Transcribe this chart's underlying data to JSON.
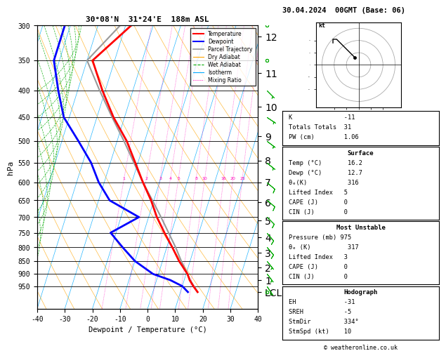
{
  "title_left": "30°08'N  31°24'E  188m ASL",
  "title_right": "30.04.2024  00GMT (Base: 06)",
  "xlabel": "Dewpoint / Temperature (°C)",
  "ylabel_left": "hPa",
  "pressure_levels": [
    300,
    350,
    400,
    450,
    500,
    550,
    600,
    650,
    700,
    750,
    800,
    850,
    900,
    950
  ],
  "pressure_min": 300,
  "pressure_max": 1050,
  "temp_min": -40,
  "temp_max": 40,
  "skew_factor": 32,
  "temperature_profile": {
    "pressure": [
      975,
      950,
      925,
      900,
      850,
      800,
      750,
      700,
      650,
      600,
      550,
      500,
      450,
      400,
      350,
      300
    ],
    "temp": [
      16.2,
      14.0,
      12.0,
      10.5,
      6.0,
      2.0,
      -2.5,
      -7.0,
      -11.0,
      -16.0,
      -21.0,
      -26.5,
      -34.0,
      -41.0,
      -48.0,
      -38.0
    ]
  },
  "dewpoint_profile": {
    "pressure": [
      975,
      950,
      925,
      900,
      850,
      800,
      750,
      700,
      650,
      600,
      550,
      500,
      450,
      400,
      350,
      300
    ],
    "temp": [
      12.7,
      10.0,
      5.0,
      -2.0,
      -10.0,
      -16.0,
      -22.0,
      -13.5,
      -26.0,
      -32.0,
      -37.0,
      -44.0,
      -52.0,
      -57.0,
      -62.0,
      -62.0
    ]
  },
  "parcel_profile": {
    "pressure": [
      975,
      950,
      925,
      900,
      850,
      800,
      750,
      700,
      650,
      600,
      550,
      500,
      450,
      400,
      350,
      300
    ],
    "temp": [
      16.2,
      14.2,
      12.2,
      10.5,
      6.8,
      3.2,
      -1.0,
      -5.5,
      -10.5,
      -16.0,
      -21.5,
      -27.5,
      -34.5,
      -42.0,
      -50.0,
      -42.0
    ]
  },
  "wind_barbs": {
    "pressure": [
      975,
      950,
      900,
      850,
      800,
      750,
      700,
      650,
      600,
      550,
      500,
      450,
      400,
      350,
      300
    ],
    "u": [
      -1,
      -2,
      -3,
      -4,
      -5,
      -6,
      -7,
      -7,
      -6,
      -5,
      -4,
      -3,
      -2,
      -2,
      -1
    ],
    "v": [
      2,
      3,
      4,
      5,
      6,
      7,
      7,
      6,
      5,
      4,
      3,
      2,
      2,
      1,
      1
    ]
  },
  "km_pressures": [
    975,
    925,
    875,
    820,
    765,
    710,
    655,
    600,
    545,
    490,
    430,
    370,
    315
  ],
  "km_labels": [
    "LCL",
    "1",
    "2",
    "3",
    "4",
    "5",
    "6",
    "7",
    "8",
    "9",
    "10",
    "11",
    "12"
  ],
  "mix_ratio_vals": [
    1,
    2,
    3,
    4,
    5,
    8,
    10,
    16,
    20,
    25
  ],
  "mix_label_pressure": 590,
  "colors": {
    "temperature": "#FF0000",
    "dewpoint": "#0000FF",
    "parcel": "#999999",
    "dry_adiabat": "#FFA500",
    "wet_adiabat": "#00AA00",
    "isotherm": "#00AAFF",
    "mixing_ratio": "#FF00BB"
  },
  "stats": {
    "K": -11,
    "Totals_Totals": 31,
    "PW_cm": 1.06,
    "Surface_Temp": 16.2,
    "Surface_Dewp": 12.7,
    "Surface_Theta_e": 316,
    "Surface_LI": 5,
    "Surface_CAPE": 0,
    "Surface_CIN": 0,
    "MU_Pressure": 975,
    "MU_Theta_e": 317,
    "MU_LI": 3,
    "MU_CAPE": 0,
    "MU_CIN": 0,
    "EH": -31,
    "SREH": -5,
    "StmDir": 334,
    "StmSpd": 10
  }
}
